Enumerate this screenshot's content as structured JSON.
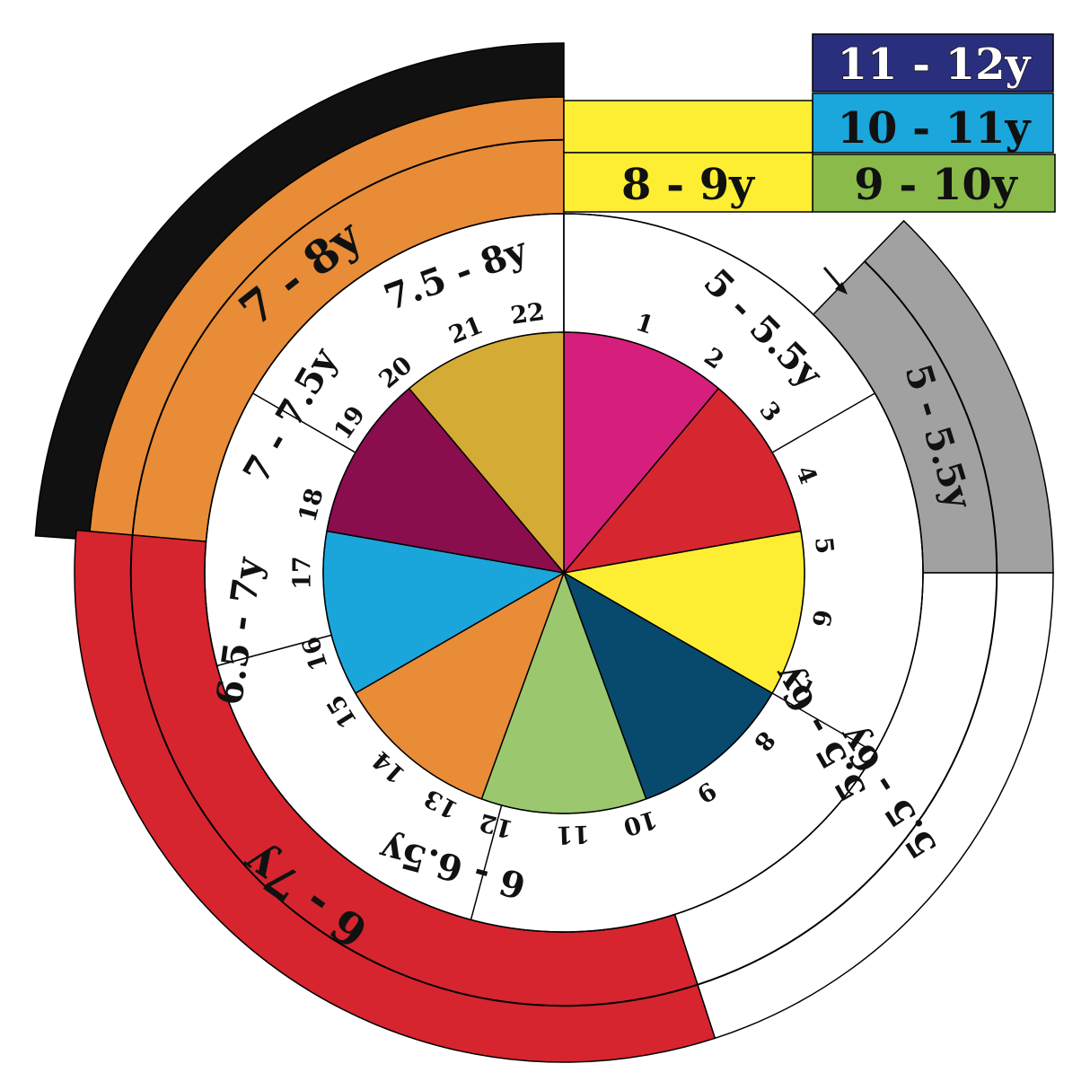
{
  "legend": {
    "box_11_12": "11 - 12y",
    "box_10_11": "10 - 11y",
    "box_9_10": "9 - 10y",
    "box_8_9": "8 - 9y"
  },
  "outer_labels": {
    "age_7_8": "7 - 8y",
    "age_6_7": "6 - 7y",
    "age_5_5_5_outer": "5 - 5.5y",
    "age_5_5_6_outer": "5.5 - 6y"
  },
  "inner_labels": {
    "age_5_5_5": "5 - 5.5y",
    "age_5_5_6": "5.5 - 6y",
    "age_6_6_5": "6 - 6.5y",
    "age_6_5_7": "6.5 - 7y",
    "age_7_7_5": "7 - 7.5y",
    "age_7_5_8": "7.5 - 8y"
  },
  "arrow_icon": "arrow-icon",
  "numbers": [
    "1",
    "2",
    "3",
    "4",
    "5",
    "6",
    "7",
    "8",
    "9",
    "10",
    "11",
    "12",
    "13",
    "14",
    "15",
    "16",
    "17",
    "18",
    "19",
    "20",
    "21",
    "22"
  ],
  "colors": {
    "navy": "#2a2f7d",
    "cyan": "#1ba6dc",
    "green": "#8abb4a",
    "yellow": "#fdee34",
    "orange": "#e88c38",
    "red": "#d6252f",
    "black": "#111111",
    "gray": "#a1a1a1",
    "magenta": "#d61f7c",
    "pie_red": "#d62630",
    "pie_yellow": "#fdee34",
    "pie_navy": "#074a6d",
    "pie_green": "#9bc86e",
    "pie_orange": "#e88c38",
    "pie_cyan": "#1ba6db",
    "pie_purple": "#8a0d4e",
    "pie_gold": "#d4ac35"
  },
  "pie_slices": [
    {
      "color_key": "magenta",
      "fraction": 0.111
    },
    {
      "color_key": "pie_red",
      "fraction": 0.111
    },
    {
      "color_key": "pie_yellow",
      "fraction": 0.111
    },
    {
      "color_key": "pie_navy",
      "fraction": 0.111
    },
    {
      "color_key": "pie_green",
      "fraction": 0.111
    },
    {
      "color_key": "pie_orange",
      "fraction": 0.111
    },
    {
      "color_key": "pie_cyan",
      "fraction": 0.111
    },
    {
      "color_key": "pie_purple",
      "fraction": 0.111
    },
    {
      "color_key": "pie_gold",
      "fraction": 0.111
    }
  ]
}
